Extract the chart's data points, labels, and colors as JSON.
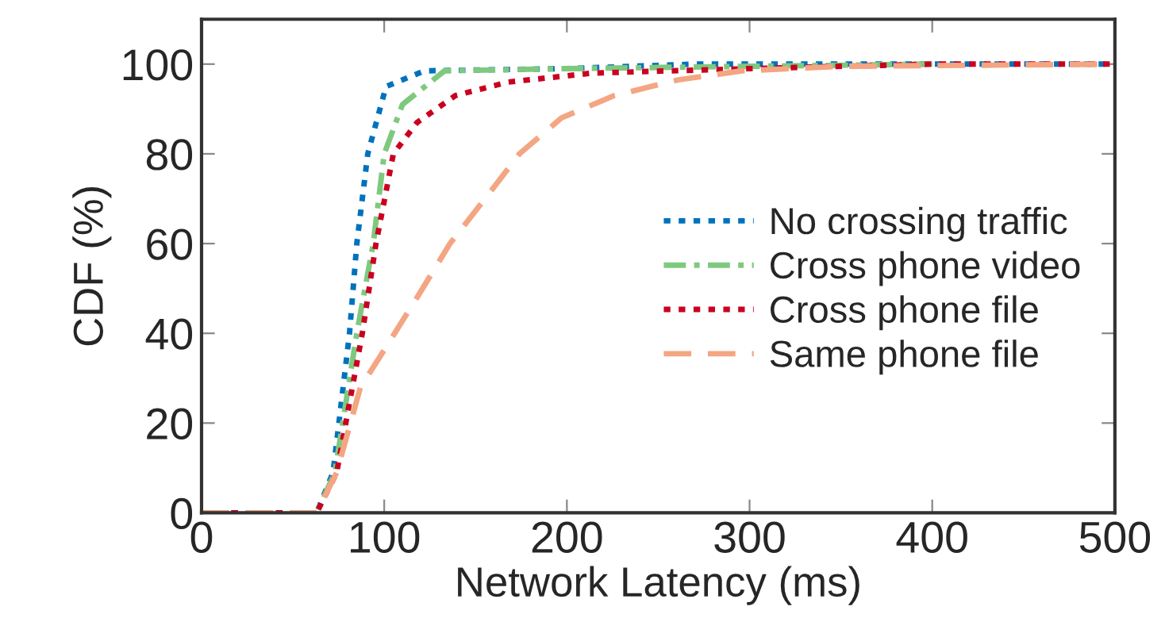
{
  "chart_data": {
    "type": "line",
    "xlabel": "Network Latency (ms)",
    "ylabel": "CDF (%)",
    "xlim": [
      0,
      500
    ],
    "xticks": [
      0,
      100,
      200,
      300,
      400,
      500
    ],
    "ylim": [
      0,
      110
    ],
    "yticks": [
      0,
      20,
      40,
      60,
      80,
      100
    ],
    "legend": "right",
    "grid": false,
    "series": [
      {
        "name": "No crossing traffic",
        "color": "#0072bd",
        "line_style": "dotted",
        "x": [
          0,
          63,
          72,
          81,
          85,
          91,
          101,
          122,
          200,
          270,
          500
        ],
        "values": [
          0,
          0,
          9,
          40,
          60,
          80,
          95,
          98.5,
          99,
          100,
          100
        ]
      },
      {
        "name": "Cross phone video",
        "color": "#7fc97f",
        "line_style": "dashdot",
        "x": [
          0,
          63,
          73,
          85,
          94,
          100,
          110,
          133,
          200,
          400
        ],
        "values": [
          0,
          0,
          9,
          40,
          60,
          80,
          91,
          98.5,
          99,
          100
        ]
      },
      {
        "name": "Cross phone file",
        "color": "#ca0020",
        "line_style": "dotted",
        "x": [
          0,
          63,
          74,
          88,
          95.5,
          105,
          118,
          139,
          168,
          214,
          300,
          400,
          500
        ],
        "values": [
          0,
          0,
          9,
          40,
          60,
          80,
          87,
          93,
          96,
          98,
          99,
          100,
          100
        ]
      },
      {
        "name": "Same phone file",
        "color": "#f4a582",
        "line_style": "dashed",
        "x": [
          0,
          63,
          74,
          87,
          98,
          118,
          136,
          159,
          174,
          197,
          226,
          261,
          296,
          350,
          500
        ],
        "values": [
          0,
          0,
          9,
          28,
          35,
          48,
          60,
          72,
          80,
          88,
          93,
          96.5,
          98.5,
          99.5,
          100
        ]
      }
    ]
  }
}
